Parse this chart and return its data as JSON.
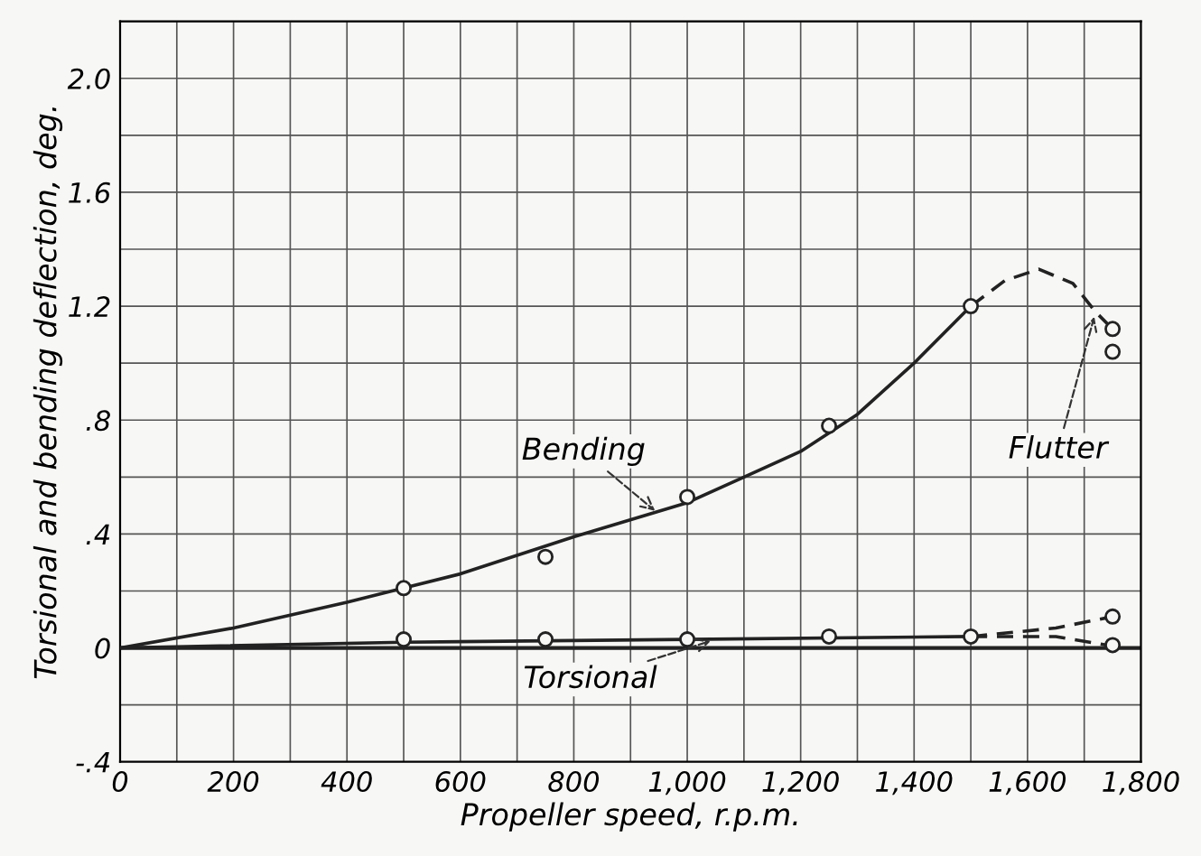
{
  "chart_data": {
    "type": "line",
    "xlabel": "Propeller speed, r.p.m.",
    "ylabel": "Torsional and bending deflection, deg.",
    "xlim": [
      0,
      1800
    ],
    "ylim": [
      -0.4,
      2.2
    ],
    "xticks": [
      0,
      200,
      400,
      600,
      800,
      {
        "value": 1000,
        "label": "1,000"
      },
      {
        "value": 1200,
        "label": "1,200"
      },
      {
        "value": 1400,
        "label": "1,400"
      },
      {
        "value": 1600,
        "label": "1,600"
      },
      {
        "value": 1800,
        "label": "1,800"
      }
    ],
    "yticks": [
      {
        "value": -0.4,
        "label": "-.4"
      },
      0,
      {
        "value": 0.4,
        "label": ".4"
      },
      {
        "value": 0.8,
        "label": ".8"
      },
      {
        "value": 1.2,
        "label": "1.2"
      },
      {
        "value": 1.6,
        "label": "1.6"
      },
      {
        "value": 2.0,
        "label": "2.0"
      },
      {
        "value": 2.2,
        "label": null
      }
    ],
    "grid": true,
    "legend": false,
    "series": [
      {
        "color": "#222222",
        "line_style": "solid",
        "marker": "none",
        "x": [
          0,
          200,
          400,
          500,
          600,
          800,
          1000,
          1100,
          1200,
          1300,
          1400,
          1500
        ],
        "values": [
          0,
          0.07,
          0.16,
          0.21,
          0.26,
          0.39,
          0.51,
          0.6,
          0.69,
          0.82,
          1.0,
          1.2
        ]
      },
      {
        "color": "#222222",
        "line_style": "dashed",
        "marker": "none",
        "x": [
          1500,
          1560,
          1620,
          1680,
          1720,
          1750
        ],
        "values": [
          1.2,
          1.29,
          1.33,
          1.28,
          1.18,
          1.12
        ]
      },
      {
        "color": "#222222",
        "line_style": "solid",
        "marker": "none",
        "x": [
          0,
          500,
          1000,
          1500
        ],
        "values": [
          0,
          0.02,
          0.03,
          0.04
        ]
      },
      {
        "color": "#222222",
        "line_style": "dashed",
        "marker": "none",
        "x": [
          1500,
          1650,
          1750
        ],
        "values": [
          0.04,
          0.07,
          0.11
        ]
      },
      {
        "color": "#222222",
        "line_style": "dashed",
        "marker": "none",
        "x": [
          1500,
          1650,
          1770
        ],
        "values": [
          0.04,
          0.04,
          0.0
        ]
      },
      {
        "type": "scatter",
        "color": "#222222",
        "marker": "circle",
        "x": [
          500,
          750,
          1000,
          1250,
          1500,
          1750,
          1750
        ],
        "values": [
          0.21,
          0.32,
          0.53,
          0.78,
          1.2,
          1.12,
          1.04
        ]
      },
      {
        "type": "scatter",
        "color": "#222222",
        "marker": "circle",
        "x": [
          500,
          750,
          1000,
          1250,
          1500,
          1750,
          1750
        ],
        "values": [
          0.03,
          0.03,
          0.03,
          0.04,
          0.04,
          0.11,
          0.01
        ]
      }
    ],
    "ref_lines": [
      {
        "axis": "y",
        "value": 0,
        "color": "#222222"
      }
    ],
    "annotations": [
      {
        "text": "Bending",
        "x": 950,
        "y": 0.47
      },
      {
        "text": "Torsional",
        "x": 1050,
        "y": 0.03
      },
      {
        "text": "Flutter",
        "x": 1720,
        "y": 1.18
      }
    ]
  }
}
